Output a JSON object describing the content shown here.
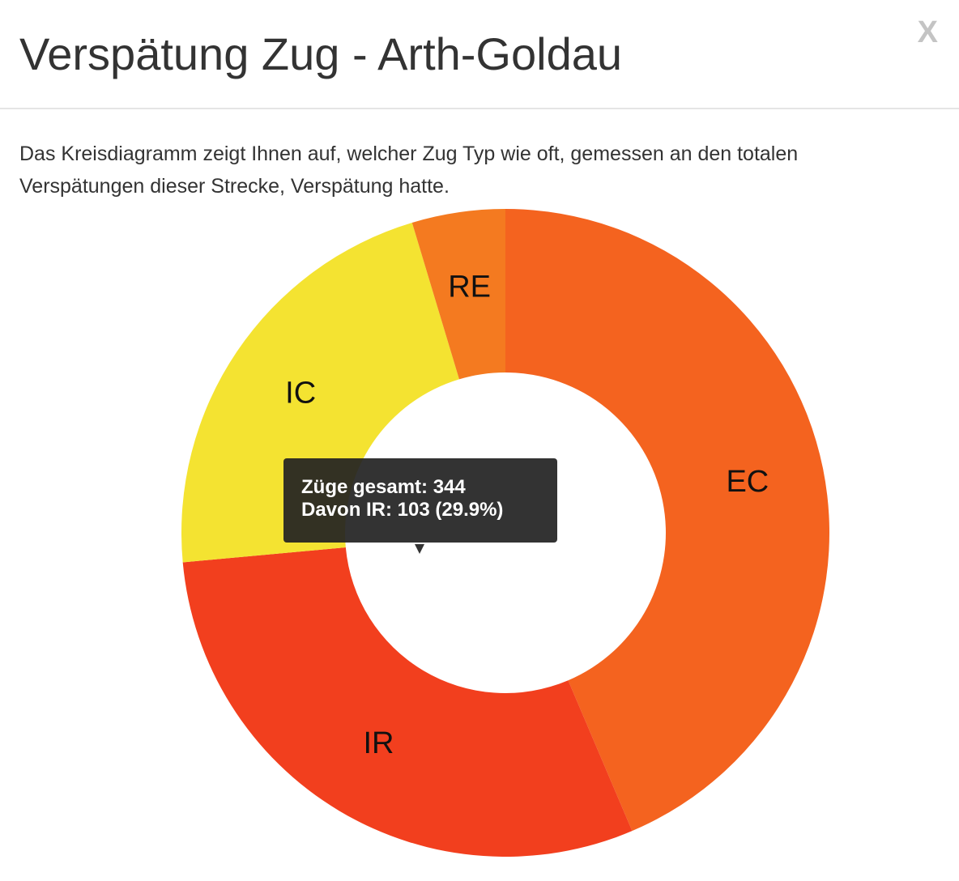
{
  "dialog": {
    "title": "Verspätung Zug - Arth-Goldau",
    "close_label": "X",
    "description": "Das Kreisdiagramm zeigt Ihnen auf, welcher Zug Typ wie oft, gemessen an den totalen Verspätungen dieser Strecke, Verspätung hatte."
  },
  "chart_data": {
    "type": "pie",
    "variant": "donut",
    "title": "",
    "total": 344,
    "slices": [
      {
        "label": "EC",
        "value": 150,
        "color": "#f4631f"
      },
      {
        "label": "IR",
        "value": 103,
        "color": "#f23f1e"
      },
      {
        "label": "IC",
        "value": 75,
        "color": "#f4e331"
      },
      {
        "label": "RE",
        "value": 16,
        "color": "#f47a20"
      }
    ]
  },
  "tooltip": {
    "line1": "Züge gesamt: 344",
    "line2": "Davon IR: 103 (29.9%)"
  }
}
